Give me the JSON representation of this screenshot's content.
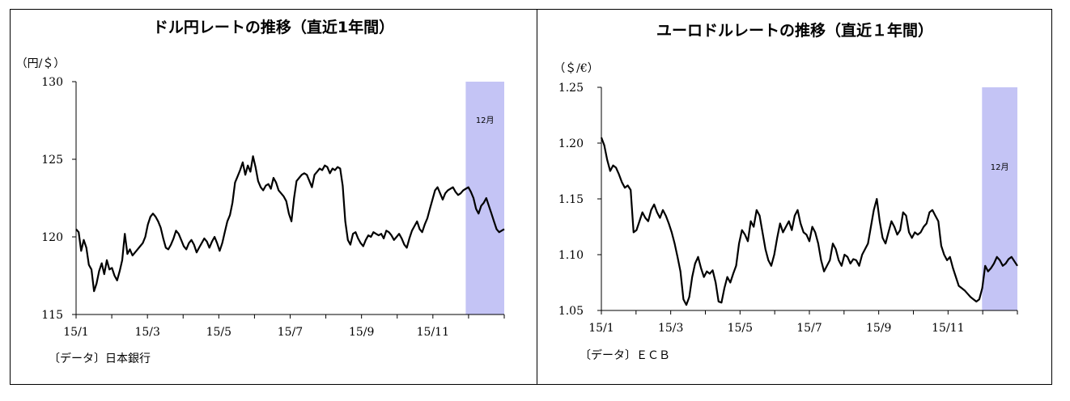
{
  "chart_data": [
    {
      "type": "line",
      "title": "ドル円レートの推移（直近1年間）",
      "unit_label": "（円/＄）",
      "source": "〔データ〕日本銀行",
      "ylim": [
        115,
        130
      ],
      "yticks": [
        "130",
        "125",
        "120",
        "115"
      ],
      "yvalues": [
        130,
        125,
        120,
        115
      ],
      "xticks": [
        "15/1",
        "15/3",
        "15/5",
        "15/7",
        "15/9",
        "15/11"
      ],
      "highlight": {
        "label": "12月",
        "color": "#c4c4f5"
      },
      "line_color": "#000000",
      "series": [
        {
          "values": [
            120.5,
            120.3,
            119.1,
            119.8,
            119.3,
            118.2,
            117.9,
            116.5,
            117.0,
            117.8,
            118.3,
            117.6,
            118.5,
            117.9,
            118.0,
            117.5,
            117.2,
            117.8,
            118.5,
            120.2,
            118.9,
            119.2,
            118.8,
            119.0,
            119.2,
            119.4,
            119.6,
            120.0,
            120.8,
            121.3,
            121.5,
            121.3,
            121.0,
            120.6,
            119.9,
            119.3,
            119.2,
            119.5,
            119.9,
            120.4,
            120.2,
            119.8,
            119.4,
            119.2,
            119.6,
            119.8,
            119.5,
            119.0,
            119.3,
            119.6,
            119.9,
            119.7,
            119.3,
            119.7,
            120.0,
            119.6,
            119.1,
            119.6,
            120.3,
            121.0,
            121.4,
            122.2,
            123.5,
            123.9,
            124.3,
            124.8,
            124.0,
            124.6,
            124.2,
            125.2,
            124.5,
            123.6,
            123.2,
            123.0,
            123.3,
            123.4,
            123.1,
            123.8,
            123.5,
            123.0,
            122.8,
            122.6,
            122.3,
            121.5,
            121.0,
            122.5,
            123.6,
            123.8,
            124.0,
            124.1,
            124.0,
            123.6,
            123.2,
            124.0,
            124.2,
            124.4,
            124.3,
            124.6,
            124.5,
            124.1,
            124.4,
            124.3,
            124.5,
            124.4,
            123.3,
            121.0,
            119.8,
            119.5,
            120.2,
            120.3,
            119.9,
            119.6,
            119.4,
            119.8,
            120.1,
            120.0,
            120.3,
            120.2,
            120.1,
            120.2,
            119.9,
            120.4,
            120.3,
            120.1,
            119.8,
            120.0,
            120.2,
            119.9,
            119.5,
            119.3,
            119.9,
            120.4,
            120.7,
            121.0,
            120.5,
            120.3,
            120.8,
            121.2,
            121.8,
            122.4,
            123.0,
            123.2,
            122.8,
            122.4,
            122.8,
            123.0,
            123.1,
            123.2,
            122.9,
            122.7,
            122.8,
            123.0,
            123.1,
            123.2,
            122.9,
            122.5,
            121.8,
            121.5,
            122.0,
            122.2,
            122.5,
            122.0,
            121.5,
            121.0,
            120.5,
            120.3,
            120.4,
            120.5
          ]
        }
      ]
    },
    {
      "type": "line",
      "title": "ユーロドルレートの推移（直近１年間）",
      "unit_label": "（＄/€）",
      "source": "〔データ〕ＥＣＢ",
      "ylim": [
        1.05,
        1.25
      ],
      "yticks": [
        "1.25",
        "1.20",
        "1.15",
        "1.10",
        "1.05"
      ],
      "yvalues": [
        1.25,
        1.2,
        1.15,
        1.1,
        1.05
      ],
      "xticks": [
        "15/1",
        "15/3",
        "15/5",
        "15/7",
        "15/9",
        "15/11"
      ],
      "highlight": {
        "label": "12月",
        "color": "#c4c4f5"
      },
      "line_color": "#000000",
      "series": [
        {
          "values": [
            1.205,
            1.198,
            1.185,
            1.175,
            1.18,
            1.178,
            1.172,
            1.165,
            1.16,
            1.162,
            1.158,
            1.12,
            1.122,
            1.13,
            1.138,
            1.133,
            1.13,
            1.14,
            1.145,
            1.138,
            1.133,
            1.14,
            1.135,
            1.128,
            1.12,
            1.11,
            1.098,
            1.085,
            1.06,
            1.055,
            1.062,
            1.08,
            1.092,
            1.098,
            1.088,
            1.08,
            1.085,
            1.083,
            1.086,
            1.075,
            1.058,
            1.057,
            1.07,
            1.08,
            1.075,
            1.083,
            1.09,
            1.11,
            1.122,
            1.118,
            1.112,
            1.13,
            1.125,
            1.14,
            1.135,
            1.12,
            1.105,
            1.095,
            1.09,
            1.1,
            1.115,
            1.128,
            1.12,
            1.125,
            1.13,
            1.122,
            1.135,
            1.14,
            1.128,
            1.12,
            1.118,
            1.112,
            1.125,
            1.12,
            1.11,
            1.095,
            1.085,
            1.09,
            1.095,
            1.11,
            1.105,
            1.095,
            1.09,
            1.1,
            1.098,
            1.092,
            1.096,
            1.095,
            1.09,
            1.1,
            1.105,
            1.11,
            1.125,
            1.14,
            1.15,
            1.13,
            1.115,
            1.11,
            1.12,
            1.13,
            1.125,
            1.118,
            1.122,
            1.138,
            1.135,
            1.12,
            1.115,
            1.12,
            1.118,
            1.12,
            1.125,
            1.128,
            1.138,
            1.14,
            1.135,
            1.13,
            1.108,
            1.1,
            1.095,
            1.098,
            1.088,
            1.08,
            1.072,
            1.07,
            1.068,
            1.065,
            1.062,
            1.06,
            1.058,
            1.06,
            1.07,
            1.09,
            1.085,
            1.088,
            1.092,
            1.098,
            1.095,
            1.09,
            1.092,
            1.096,
            1.098,
            1.094,
            1.09
          ]
        }
      ]
    }
  ]
}
